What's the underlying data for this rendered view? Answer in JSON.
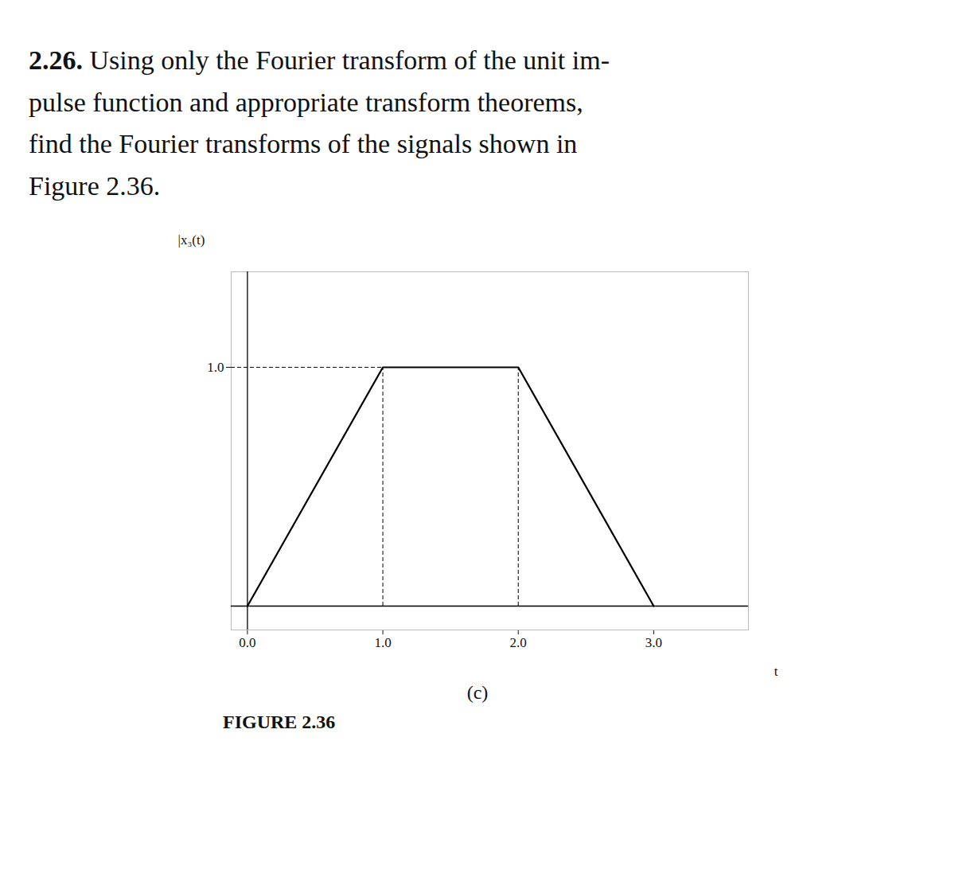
{
  "chart_data": {
    "type": "line",
    "title": "2.26. Using only the Fourier transform of the unit im-\npulse function and appropriate transform theorems,\nfind the Fourier transforms of the signals shown in\nFigure 2.36.",
    "x": [
      0,
      1,
      2,
      3
    ],
    "values": [
      0,
      1,
      1,
      0
    ],
    "color": "#000000",
    "line_style": "solid",
    "xlabel": "t",
    "ylabel": "|x₃(t)",
    "xlim": [
      -0.12,
      3.7
    ],
    "ylim": [
      -0.1,
      1.4
    ],
    "xticks": [
      0,
      1,
      2,
      3
    ],
    "yticks": [
      1
    ],
    "dashed_x": [
      1,
      2
    ],
    "dashed_y": [
      1
    ],
    "grid": false,
    "annotations": [
      "(c)",
      "FIGURE 2.36"
    ]
  }
}
